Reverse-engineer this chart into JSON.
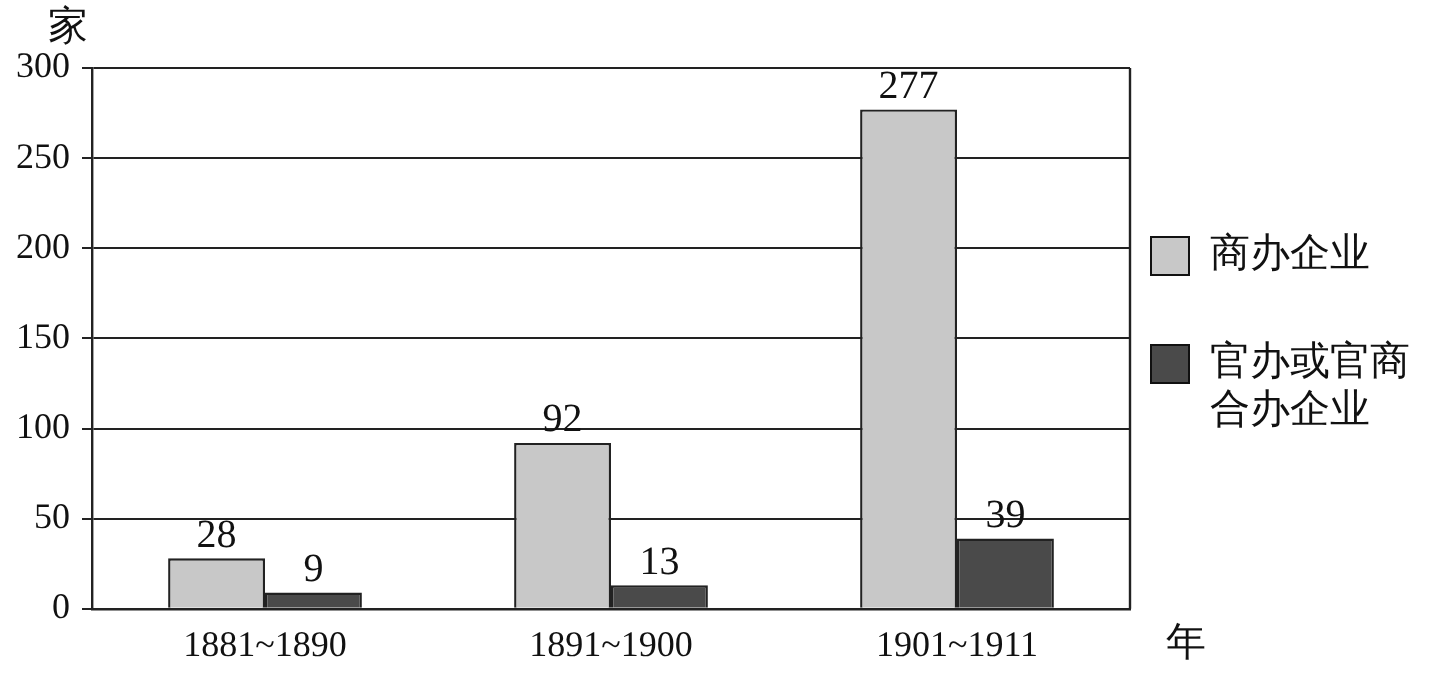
{
  "chart_data": {
    "type": "bar",
    "ylabel": "家",
    "xlabel": "年",
    "categories": [
      "1881~1890",
      "1891~1900",
      "1901~1911"
    ],
    "series": [
      {
        "name": "商办企业",
        "color": "#c8c8c8",
        "values": [
          28,
          92,
          277
        ]
      },
      {
        "name": "官办或官商合办企业",
        "color": "#4a4a4a",
        "values": [
          9,
          13,
          39
        ]
      }
    ],
    "ylim": [
      0,
      300
    ],
    "yticks": [
      0,
      50,
      100,
      150,
      200,
      250,
      300
    ],
    "grid": "y",
    "legend": "right",
    "data_labels": true
  }
}
